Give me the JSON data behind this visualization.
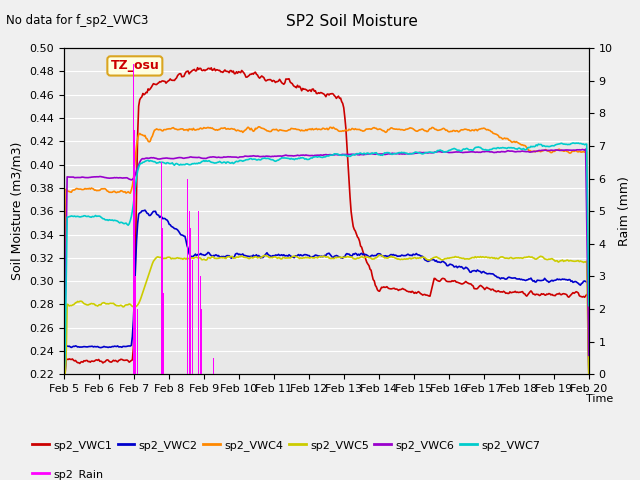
{
  "title": "SP2 Soil Moisture",
  "no_data_text": "No data for f_sp2_VWC3",
  "tz_label": "TZ_osu",
  "ylabel_left": "Soil Moisture (m3/m3)",
  "ylabel_right": "Raim (mm)",
  "xlabel": "Time",
  "ylim_left": [
    0.22,
    0.5
  ],
  "ylim_right": [
    0.0,
    10.0
  ],
  "yticks_left": [
    0.22,
    0.24,
    0.26,
    0.28,
    0.3,
    0.32,
    0.34,
    0.36,
    0.38,
    0.4,
    0.42,
    0.44,
    0.46,
    0.48,
    0.5
  ],
  "yticks_right": [
    0.0,
    1.0,
    2.0,
    3.0,
    4.0,
    5.0,
    6.0,
    7.0,
    8.0,
    9.0,
    10.0
  ],
  "xtick_labels": [
    "Feb 5",
    "Feb 6",
    "Feb 7",
    "Feb 8",
    "Feb 9",
    "Feb 10",
    "Feb 11",
    "Feb 12",
    "Feb 13",
    "Feb 14",
    "Feb 15",
    "Feb 16",
    "Feb 17",
    "Feb 18",
    "Feb 19",
    "Feb 20"
  ],
  "colors": {
    "VWC1": "#cc0000",
    "VWC2": "#0000cc",
    "VWC4": "#ff8800",
    "VWC5": "#cccc00",
    "VWC6": "#9900cc",
    "VWC7": "#00cccc",
    "Rain": "#ff00ff"
  },
  "background_color": "#e8e8e8",
  "fig_facecolor": "#f0f0f0",
  "n_points": 500
}
